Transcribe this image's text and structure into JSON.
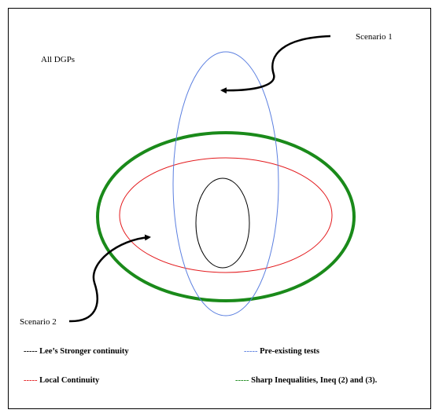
{
  "diagram": {
    "labels": {
      "all_dgps": "All DGPs",
      "scenario_1": "Scenario 1",
      "scenario_2": "Scenario 2"
    },
    "legend": [
      {
        "dash": "-----",
        "label": "Lee’s Stronger continuity"
      },
      {
        "dash": "-----",
        "label": "Pre-existing tests"
      },
      {
        "dash": "-----",
        "label": "Local Continuity"
      },
      {
        "dash": "-----",
        "label": "Sharp Inequalities, Ineq (2) and (3)."
      }
    ]
  }
}
